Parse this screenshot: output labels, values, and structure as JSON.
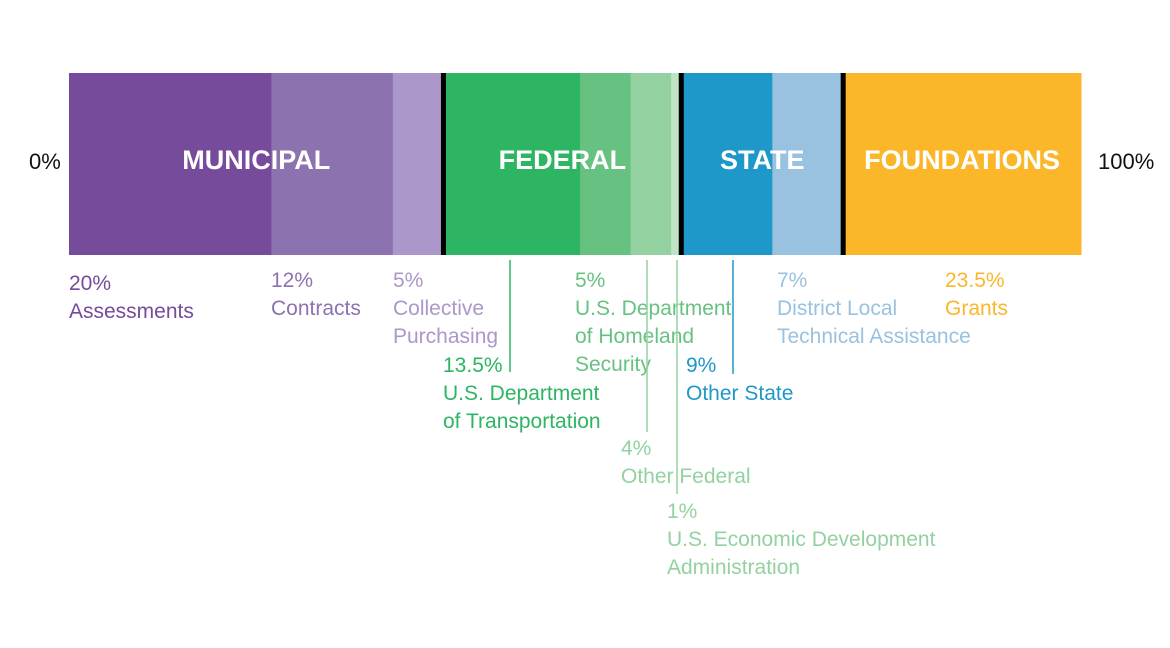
{
  "chart_data": {
    "type": "stacked-bar-100",
    "axis": {
      "left_label": "0%",
      "right_label": "100%",
      "range": [
        0,
        100
      ]
    },
    "groups": [
      {
        "name": "MUNICIPAL",
        "label_color": "#ffffff"
      },
      {
        "name": "FEDERAL",
        "label_color": "#ffffff"
      },
      {
        "name": "STATE",
        "label_color": "#ffffff"
      },
      {
        "name": "FOUNDATIONS",
        "label_color": "#ffffff"
      }
    ],
    "segments": [
      {
        "group": "MUNICIPAL",
        "value": 20,
        "pct_label": "20%",
        "label": "Assessments",
        "color": "#764b9b",
        "text_color": "#764b9b"
      },
      {
        "group": "MUNICIPAL",
        "value": 12,
        "pct_label": "12%",
        "label": "Contracts",
        "color": "#8d72b0",
        "text_color": "#8d72b0"
      },
      {
        "group": "MUNICIPAL",
        "value": 5,
        "pct_label": "5%",
        "label": "Collective Purchasing",
        "color": "#ab97c9",
        "text_color": "#ab97c9"
      },
      {
        "group": "FEDERAL",
        "value": 13.5,
        "pct_label": "13.5%",
        "label": "U.S. Department of Transportation",
        "color": "#2db563",
        "text_color": "#2db563"
      },
      {
        "group": "FEDERAL",
        "value": 5,
        "pct_label": "5%",
        "label": "U.S. Department of Homeland Security",
        "color": "#67c282",
        "text_color": "#67c282"
      },
      {
        "group": "FEDERAL",
        "value": 4,
        "pct_label": "4%",
        "label": "Other Federal",
        "color": "#93d2a0",
        "text_color": "#93d2a0"
      },
      {
        "group": "FEDERAL",
        "value": 1,
        "pct_label": "1%",
        "label": "U.S. Economic Development Administration",
        "color": "#bfe3c5",
        "text_color": "#93d2a0"
      },
      {
        "group": "STATE",
        "value": 9,
        "pct_label": "9%",
        "label": "Other State",
        "color": "#1e98c8",
        "text_color": "#1e98c8"
      },
      {
        "group": "STATE",
        "value": 7,
        "pct_label": "7%",
        "label": "District Local Technical Assistance",
        "color": "#98c2e0",
        "text_color": "#98c2e0"
      },
      {
        "group": "FOUNDATIONS",
        "value": 23.5,
        "pct_label": "23.5%",
        "label": "Grants",
        "color": "#fbb629",
        "text_color": "#fbb629"
      }
    ],
    "divider_color": "#000000"
  }
}
